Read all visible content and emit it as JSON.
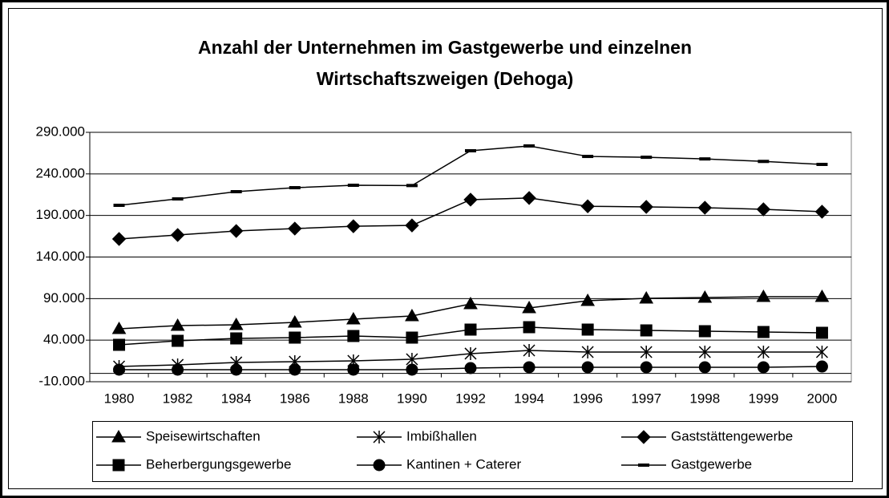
{
  "chart_data": {
    "type": "line",
    "title": "Anzahl der Unternehmen im Gastgewerbe und einzelnen Wirtschaftszweigen (Dehoga)",
    "categories": [
      "1980",
      "1982",
      "1984",
      "1986",
      "1988",
      "1990",
      "1992",
      "1994",
      "1996",
      "1997",
      "1998",
      "1999",
      "2000"
    ],
    "series": [
      {
        "name": "Speisewirtschaften",
        "color": "#000000",
        "marker": "triangle",
        "values": [
          53700,
          57500,
          58500,
          61400,
          65200,
          69100,
          83600,
          78700,
          87400,
          90300,
          91300,
          92200,
          92200
        ]
      },
      {
        "name": "Imbißhallen",
        "color": "#000000",
        "marker": "star",
        "values": [
          8300,
          10300,
          13200,
          14100,
          15100,
          17000,
          23800,
          27600,
          25700,
          25700,
          25700,
          25700,
          25700
        ]
      },
      {
        "name": "Gaststättengewerbe",
        "color": "#000000",
        "marker": "diamond",
        "values": [
          161700,
          166500,
          171300,
          174200,
          177000,
          178000,
          209000,
          211000,
          201000,
          200300,
          199300,
          197400,
          194500
        ]
      },
      {
        "name": "Beherbergungsgewerbe",
        "color": "#000000",
        "marker": "square",
        "values": [
          34400,
          39200,
          42100,
          43000,
          45000,
          43000,
          52700,
          55600,
          52700,
          51700,
          50800,
          49800,
          48800
        ]
      },
      {
        "name": "Kantinen + Caterer",
        "color": "#000000",
        "marker": "circle",
        "values": [
          4500,
          4500,
          4500,
          4500,
          4500,
          4500,
          6400,
          7400,
          7400,
          7400,
          7400,
          7400,
          8300
        ]
      },
      {
        "name": "Gastgewerbe",
        "color": "#000000",
        "marker": "dash",
        "values": [
          202200,
          209900,
          218600,
          223400,
          226300,
          226000,
          267800,
          273600,
          261000,
          260000,
          258000,
          255000,
          251400
        ]
      }
    ],
    "ylim": [
      -10000,
      290000
    ],
    "yticks": [
      {
        "value": -10000,
        "label": "-10.000"
      },
      {
        "value": 40000,
        "label": "40.000"
      },
      {
        "value": 90000,
        "label": "90.000"
      },
      {
        "value": 140000,
        "label": "140.000"
      },
      {
        "value": 190000,
        "label": "190.000"
      },
      {
        "value": 240000,
        "label": "240.000"
      },
      {
        "value": 290000,
        "label": "290.000"
      }
    ],
    "grid": true,
    "legend": "bottom"
  }
}
